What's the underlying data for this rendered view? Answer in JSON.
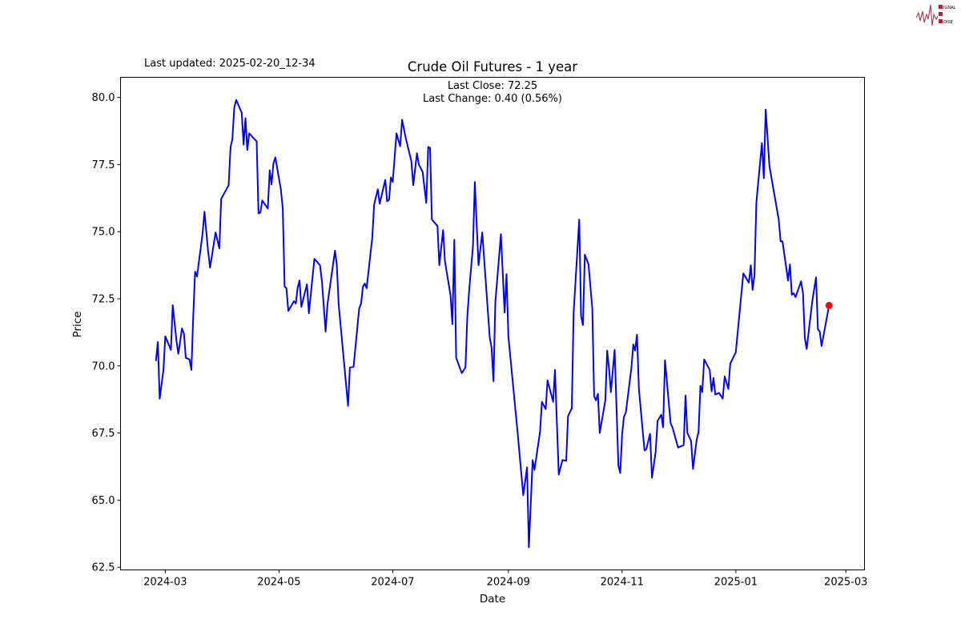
{
  "header": {
    "last_updated": "Last updated: 2025-02-20_12-34",
    "logo_text": "SIGNAL 2 NOISE"
  },
  "chart_data": {
    "type": "line",
    "title": "Crude Oil Futures - 1 year",
    "annotation": {
      "last_close": "Last Close: 72.25",
      "last_change": "Last Change: 0.40 (0.56%)"
    },
    "xlabel": "Date",
    "ylabel": "Price",
    "xlim": [
      "2024-02-06",
      "2025-03-11"
    ],
    "ylim": [
      62.4,
      80.75
    ],
    "x_ticks": [
      "2024-03",
      "2024-05",
      "2024-07",
      "2024-09",
      "2024-11",
      "2025-01",
      "2025-03"
    ],
    "y_ticks": [
      "62.5",
      "65.0",
      "67.5",
      "70.0",
      "72.5",
      "75.0",
      "77.5",
      "80.0"
    ],
    "grid": false,
    "line_color": "#0000ff",
    "marker_color": "#ff0000",
    "last_point": [
      "2025-02-20",
      72.25
    ],
    "series": [
      {
        "points": [
          [
            "2024-02-25",
            70.18
          ],
          [
            "2024-02-26",
            70.89
          ],
          [
            "2024-02-27",
            68.78
          ],
          [
            "2024-02-29",
            69.85
          ],
          [
            "2024-03-01",
            71.1
          ],
          [
            "2024-03-04",
            70.6
          ],
          [
            "2024-03-05",
            72.26
          ],
          [
            "2024-03-07",
            70.95
          ],
          [
            "2024-03-08",
            70.45
          ],
          [
            "2024-03-10",
            71.4
          ],
          [
            "2024-03-11",
            71.2
          ],
          [
            "2024-03-12",
            70.3
          ],
          [
            "2024-03-14",
            70.24
          ],
          [
            "2024-03-15",
            69.85
          ],
          [
            "2024-03-16",
            71.85
          ],
          [
            "2024-03-17",
            73.51
          ],
          [
            "2024-03-18",
            73.33
          ],
          [
            "2024-03-21",
            74.91
          ],
          [
            "2024-03-22",
            75.74
          ],
          [
            "2024-03-24",
            74.26
          ],
          [
            "2024-03-25",
            73.66
          ],
          [
            "2024-03-28",
            74.97
          ],
          [
            "2024-03-30",
            74.38
          ],
          [
            "2024-03-31",
            76.22
          ],
          [
            "2024-04-04",
            76.73
          ],
          [
            "2024-04-05",
            78.15
          ],
          [
            "2024-04-06",
            78.45
          ],
          [
            "2024-04-07",
            79.61
          ],
          [
            "2024-04-08",
            79.91
          ],
          [
            "2024-04-11",
            79.43
          ],
          [
            "2024-04-12",
            78.24
          ],
          [
            "2024-04-13",
            79.23
          ],
          [
            "2024-04-14",
            78.04
          ],
          [
            "2024-04-15",
            78.66
          ],
          [
            "2024-04-19",
            78.36
          ],
          [
            "2024-04-20",
            75.68
          ],
          [
            "2024-04-21",
            75.71
          ],
          [
            "2024-04-22",
            76.16
          ],
          [
            "2024-04-25",
            75.86
          ],
          [
            "2024-04-26",
            77.29
          ],
          [
            "2024-04-27",
            76.76
          ],
          [
            "2024-04-28",
            77.53
          ],
          [
            "2024-04-29",
            77.77
          ],
          [
            "2024-05-02",
            76.58
          ],
          [
            "2024-05-03",
            75.86
          ],
          [
            "2024-05-04",
            72.95
          ],
          [
            "2024-05-05",
            72.89
          ],
          [
            "2024-05-06",
            72.05
          ],
          [
            "2024-05-09",
            72.41
          ],
          [
            "2024-05-10",
            72.32
          ],
          [
            "2024-05-11",
            72.92
          ],
          [
            "2024-05-12",
            73.18
          ],
          [
            "2024-05-13",
            72.2
          ],
          [
            "2024-05-16",
            73.04
          ],
          [
            "2024-05-17",
            71.96
          ],
          [
            "2024-05-20",
            73.99
          ],
          [
            "2024-05-23",
            73.75
          ],
          [
            "2024-05-24",
            73.15
          ],
          [
            "2024-05-26",
            71.28
          ],
          [
            "2024-05-27",
            72.29
          ],
          [
            "2024-05-31",
            74.29
          ],
          [
            "2024-06-01",
            73.75
          ],
          [
            "2024-06-02",
            72.29
          ],
          [
            "2024-06-07",
            68.51
          ],
          [
            "2024-06-08",
            69.94
          ],
          [
            "2024-06-10",
            69.97
          ],
          [
            "2024-06-13",
            72.14
          ],
          [
            "2024-06-14",
            72.32
          ],
          [
            "2024-06-15",
            72.95
          ],
          [
            "2024-06-16",
            73.07
          ],
          [
            "2024-06-17",
            72.89
          ],
          [
            "2024-06-20",
            74.76
          ],
          [
            "2024-06-21",
            76.01
          ],
          [
            "2024-06-23",
            76.58
          ],
          [
            "2024-06-24",
            76.04
          ],
          [
            "2024-06-27",
            76.93
          ],
          [
            "2024-06-28",
            76.13
          ],
          [
            "2024-06-29",
            76.19
          ],
          [
            "2024-06-30",
            77.02
          ],
          [
            "2024-07-01",
            76.85
          ],
          [
            "2024-07-03",
            78.66
          ],
          [
            "2024-07-05",
            78.18
          ],
          [
            "2024-07-06",
            79.17
          ],
          [
            "2024-07-08",
            78.48
          ],
          [
            "2024-07-11",
            77.62
          ],
          [
            "2024-07-12",
            76.73
          ],
          [
            "2024-07-14",
            77.92
          ],
          [
            "2024-07-15",
            77.5
          ],
          [
            "2024-07-17",
            77.23
          ],
          [
            "2024-07-19",
            76.07
          ],
          [
            "2024-07-20",
            78.15
          ],
          [
            "2024-07-21",
            78.12
          ],
          [
            "2024-07-22",
            75.45
          ],
          [
            "2024-07-25",
            75.21
          ],
          [
            "2024-07-26",
            73.75
          ],
          [
            "2024-07-28",
            75.06
          ],
          [
            "2024-07-29",
            73.9
          ],
          [
            "2024-08-01",
            72.62
          ],
          [
            "2024-08-02",
            71.55
          ],
          [
            "2024-08-03",
            74.7
          ],
          [
            "2024-08-04",
            70.3
          ],
          [
            "2024-08-07",
            69.73
          ],
          [
            "2024-08-09",
            69.94
          ],
          [
            "2024-08-10",
            71.87
          ],
          [
            "2024-08-11",
            72.83
          ],
          [
            "2024-08-13",
            74.46
          ],
          [
            "2024-08-14",
            76.85
          ],
          [
            "2024-08-16",
            73.75
          ],
          [
            "2024-08-18",
            74.97
          ],
          [
            "2024-08-22",
            71.07
          ],
          [
            "2024-08-23",
            70.68
          ],
          [
            "2024-08-24",
            69.43
          ],
          [
            "2024-08-25",
            72.35
          ],
          [
            "2024-08-28",
            74.91
          ],
          [
            "2024-08-30",
            71.99
          ],
          [
            "2024-08-31",
            73.42
          ],
          [
            "2024-09-01",
            71.1
          ],
          [
            "2024-09-06",
            67.5
          ],
          [
            "2024-09-07",
            66.7
          ],
          [
            "2024-09-09",
            65.18
          ],
          [
            "2024-09-11",
            66.22
          ],
          [
            "2024-09-12",
            63.24
          ],
          [
            "2024-09-14",
            66.49
          ],
          [
            "2024-09-15",
            66.13
          ],
          [
            "2024-09-18",
            67.56
          ],
          [
            "2024-09-19",
            68.66
          ],
          [
            "2024-09-21",
            68.39
          ],
          [
            "2024-09-22",
            69.46
          ],
          [
            "2024-09-25",
            68.66
          ],
          [
            "2024-09-26",
            69.85
          ],
          [
            "2024-09-28",
            65.95
          ],
          [
            "2024-09-30",
            66.49
          ],
          [
            "2024-10-02",
            66.46
          ],
          [
            "2024-10-03",
            68.13
          ],
          [
            "2024-10-05",
            68.42
          ],
          [
            "2024-10-06",
            71.99
          ],
          [
            "2024-10-09",
            75.45
          ],
          [
            "2024-10-10",
            71.85
          ],
          [
            "2024-10-11",
            71.52
          ],
          [
            "2024-10-12",
            74.14
          ],
          [
            "2024-10-14",
            73.78
          ],
          [
            "2024-10-16",
            72.14
          ],
          [
            "2024-10-17",
            68.87
          ],
          [
            "2024-10-18",
            68.72
          ],
          [
            "2024-10-19",
            68.96
          ],
          [
            "2024-10-20",
            67.5
          ],
          [
            "2024-10-23",
            68.72
          ],
          [
            "2024-10-24",
            70.57
          ],
          [
            "2024-10-25",
            69.91
          ],
          [
            "2024-10-26",
            69.02
          ],
          [
            "2024-10-28",
            70.6
          ],
          [
            "2024-10-30",
            66.28
          ],
          [
            "2024-10-31",
            66.01
          ],
          [
            "2024-11-01",
            67.44
          ],
          [
            "2024-11-02",
            68.1
          ],
          [
            "2024-11-03",
            68.27
          ],
          [
            "2024-11-06",
            69.94
          ],
          [
            "2024-11-07",
            70.8
          ],
          [
            "2024-11-08",
            70.57
          ],
          [
            "2024-11-09",
            71.16
          ],
          [
            "2024-11-10",
            69.14
          ],
          [
            "2024-11-13",
            66.85
          ],
          [
            "2024-11-14",
            66.9
          ],
          [
            "2024-11-16",
            67.47
          ],
          [
            "2024-11-17",
            65.83
          ],
          [
            "2024-11-19",
            66.79
          ],
          [
            "2024-11-20",
            67.95
          ],
          [
            "2024-11-22",
            68.18
          ],
          [
            "2024-11-23",
            67.71
          ],
          [
            "2024-11-24",
            70.21
          ],
          [
            "2024-11-27",
            67.86
          ],
          [
            "2024-11-28",
            67.71
          ],
          [
            "2024-12-01",
            66.96
          ],
          [
            "2024-12-04",
            67.05
          ],
          [
            "2024-12-05",
            68.9
          ],
          [
            "2024-12-06",
            67.5
          ],
          [
            "2024-12-08",
            67.2
          ],
          [
            "2024-12-09",
            66.16
          ],
          [
            "2024-12-11",
            67.26
          ],
          [
            "2024-12-12",
            67.53
          ],
          [
            "2024-12-13",
            69.26
          ],
          [
            "2024-12-14",
            69.02
          ],
          [
            "2024-12-15",
            70.24
          ],
          [
            "2024-12-18",
            69.85
          ],
          [
            "2024-12-19",
            69.05
          ],
          [
            "2024-12-20",
            69.55
          ],
          [
            "2024-12-21",
            68.93
          ],
          [
            "2024-12-23",
            68.99
          ],
          [
            "2024-12-25",
            68.78
          ],
          [
            "2024-12-26",
            69.61
          ],
          [
            "2024-12-28",
            69.14
          ],
          [
            "2024-12-29",
            70.09
          ],
          [
            "2025-01-01",
            70.51
          ],
          [
            "2025-01-05",
            73.45
          ],
          [
            "2025-01-08",
            73.1
          ],
          [
            "2025-01-09",
            73.75
          ],
          [
            "2025-01-10",
            72.83
          ],
          [
            "2025-01-11",
            73.39
          ],
          [
            "2025-01-12",
            76.1
          ],
          [
            "2025-01-15",
            78.3
          ],
          [
            "2025-01-16",
            76.99
          ],
          [
            "2025-01-17",
            79.55
          ],
          [
            "2025-01-19",
            77.44
          ],
          [
            "2025-01-24",
            75.45
          ],
          [
            "2025-01-25",
            74.64
          ],
          [
            "2025-01-26",
            74.64
          ],
          [
            "2025-01-29",
            73.18
          ],
          [
            "2025-01-30",
            73.78
          ],
          [
            "2025-01-31",
            72.65
          ],
          [
            "2025-02-01",
            72.71
          ],
          [
            "2025-02-02",
            72.56
          ],
          [
            "2025-02-05",
            73.15
          ],
          [
            "2025-02-06",
            72.71
          ],
          [
            "2025-02-07",
            71.04
          ],
          [
            "2025-02-08",
            70.63
          ],
          [
            "2025-02-11",
            72.41
          ],
          [
            "2025-02-13",
            73.3
          ],
          [
            "2025-02-14",
            71.37
          ],
          [
            "2025-02-15",
            71.28
          ],
          [
            "2025-02-16",
            70.74
          ],
          [
            "2025-02-20",
            72.25
          ]
        ]
      }
    ]
  }
}
